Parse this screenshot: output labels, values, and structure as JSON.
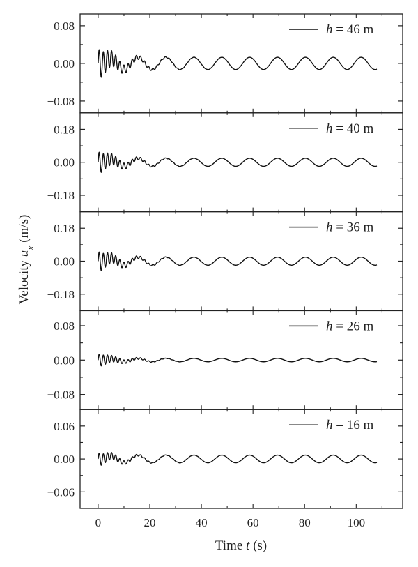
{
  "chart_data": {
    "type": "line",
    "xlabel": "Time t (s)",
    "ylabel": "Velocity u_x (m/s)",
    "xlim": [
      -7,
      118
    ],
    "xticks": [
      0,
      20,
      40,
      60,
      80,
      100
    ],
    "xtick_labels": [
      "0",
      "20",
      "40",
      "60",
      "80",
      "100"
    ],
    "grid": false,
    "legend_position": "top-right",
    "panels": [
      {
        "series_name": "h = 46 m",
        "legend": {
          "var": "h",
          "eq": "=",
          "value": "46",
          "unit": "m"
        },
        "ylim": [
          -0.105,
          0.105
        ],
        "yticks": [
          0.08,
          0.0,
          -0.08
        ],
        "ytick_labels": [
          "0.08",
          "0.00",
          "−0.08"
        ],
        "amplitude_initial": 0.032,
        "amplitude_steady": 0.013,
        "duration": [
          0,
          108
        ]
      },
      {
        "series_name": "h = 40 m",
        "legend": {
          "var": "h",
          "eq": "=",
          "value": "40",
          "unit": "m"
        },
        "ylim": [
          -0.27,
          0.27
        ],
        "yticks": [
          0.18,
          0.0,
          -0.18
        ],
        "ytick_labels": [
          "0.18",
          "0.00",
          "−0.18"
        ],
        "amplitude_initial": 0.06,
        "amplitude_steady": 0.022,
        "duration": [
          0,
          108
        ]
      },
      {
        "series_name": "h = 36 m",
        "legend": {
          "var": "h",
          "eq": "=",
          "value": "36",
          "unit": "m"
        },
        "ylim": [
          -0.27,
          0.27
        ],
        "yticks": [
          0.18,
          0.0,
          -0.18
        ],
        "ytick_labels": [
          "0.18",
          "0.00",
          "−0.18"
        ],
        "amplitude_initial": 0.055,
        "amplitude_steady": 0.022,
        "duration": [
          0,
          108
        ]
      },
      {
        "series_name": "h = 26 m",
        "legend": {
          "var": "h",
          "eq": "=",
          "value": "26",
          "unit": "m"
        },
        "ylim": [
          -0.115,
          0.115
        ],
        "yticks": [
          0.08,
          0.0,
          -0.08
        ],
        "ytick_labels": [
          "0.08",
          "0.00",
          "−0.08"
        ],
        "amplitude_initial": 0.015,
        "amplitude_steady": 0.004,
        "duration": [
          0,
          108
        ]
      },
      {
        "series_name": "h = 16 m",
        "legend": {
          "var": "h",
          "eq": "=",
          "value": "16",
          "unit": "m"
        },
        "ylim": [
          -0.09,
          0.09
        ],
        "yticks": [
          0.06,
          0.0,
          -0.06
        ],
        "ytick_labels": [
          "0.06",
          "0.00",
          "−0.06"
        ],
        "amplitude_initial": 0.012,
        "amplitude_steady": 0.007,
        "duration": [
          0,
          108
        ]
      }
    ]
  }
}
